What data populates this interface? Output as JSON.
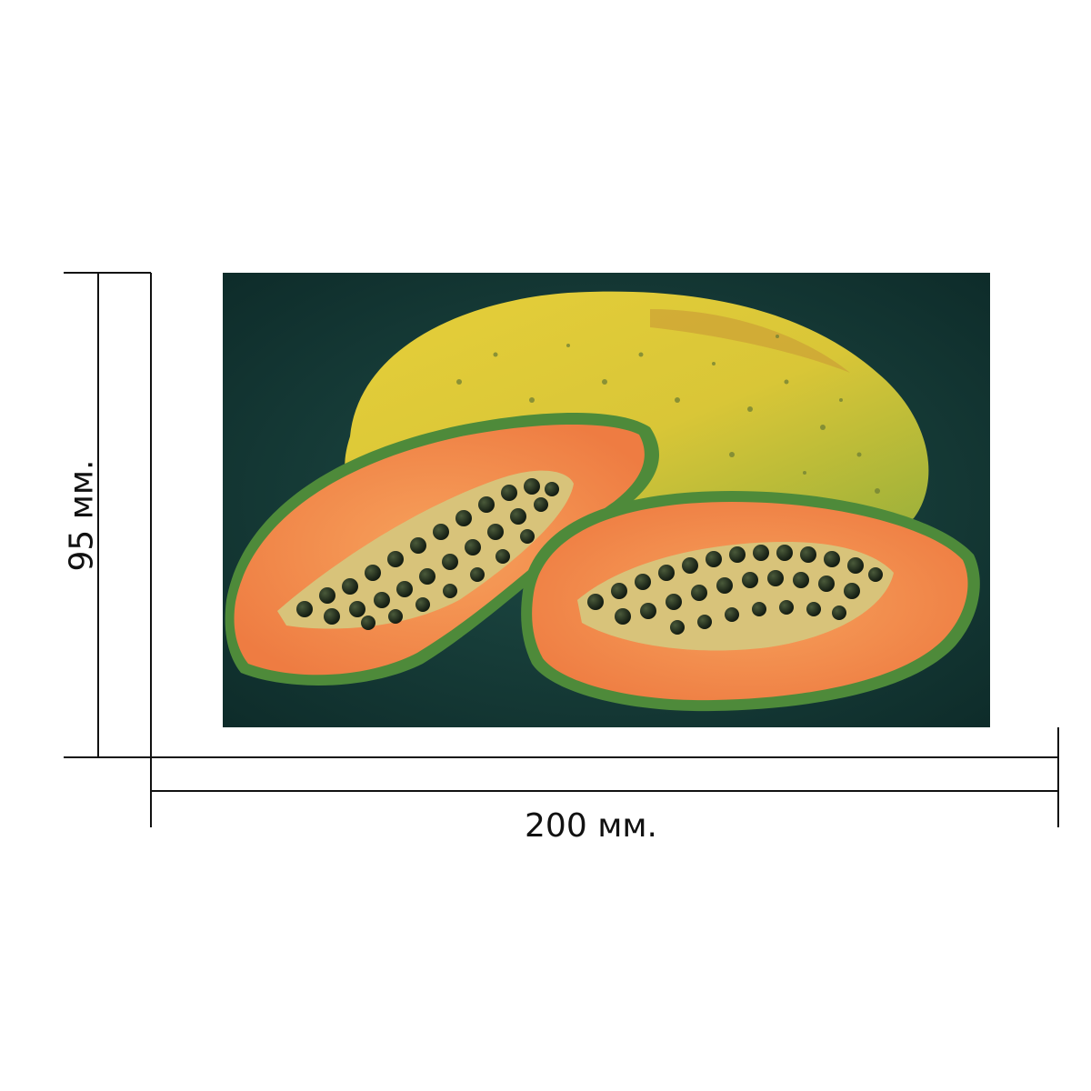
{
  "dimensions": {
    "width_label": "200 мм.",
    "height_label": "95 мм."
  },
  "photo": {
    "subject": "papaya-fruit",
    "colors": {
      "background": "#123a36",
      "skin": "#d8c43a",
      "flesh": "#f08a4a",
      "seeds": "#1c2a1c"
    }
  }
}
